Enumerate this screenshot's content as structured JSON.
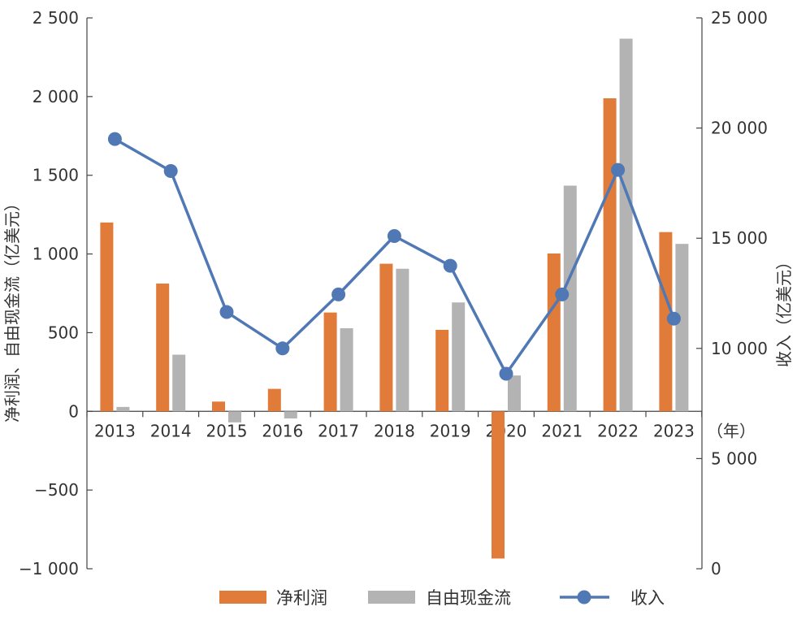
{
  "chart_data": {
    "type": "bar",
    "categories": [
      "2013",
      "2014",
      "2015",
      "2016",
      "2017",
      "2018",
      "2019",
      "2020",
      "2021",
      "2022",
      "2023"
    ],
    "x_unit": "（年）",
    "series": [
      {
        "name": "净利润",
        "kind": "bar",
        "axis": "left",
        "color": "#e07b39",
        "values": [
          1200,
          812,
          62,
          143,
          628,
          938,
          518,
          -935,
          1003,
          1989,
          1139
        ]
      },
      {
        "name": "自由现金流",
        "kind": "bar",
        "axis": "left",
        "color": "#b3b3b3",
        "values": [
          28,
          360,
          -70,
          -45,
          528,
          906,
          692,
          228,
          1434,
          2368,
          1064
        ]
      },
      {
        "name": "收入",
        "kind": "line",
        "axis": "right",
        "color": "#4f78b5",
        "values": [
          19500,
          18050,
          11650,
          10000,
          12450,
          15100,
          13750,
          8850,
          12450,
          18100,
          11350
        ]
      }
    ],
    "y_left": {
      "label": "净利润、自由现金流（亿美元）",
      "range": [
        -1000,
        2500
      ],
      "ticks": [
        -1000,
        -500,
        0,
        500,
        1000,
        1500,
        2000,
        2500
      ],
      "tick_labels": [
        "−1 000",
        "−500",
        "0",
        "500",
        "1 000",
        "1 500",
        "2 000",
        "2 500"
      ]
    },
    "y_right": {
      "label": "收入（亿美元）",
      "range": [
        0,
        25000
      ],
      "ticks": [
        0,
        5000,
        10000,
        15000,
        20000,
        25000
      ],
      "tick_labels": [
        "0",
        "5 000",
        "10 000",
        "15 000",
        "20 000",
        "25 000"
      ]
    },
    "grid": false,
    "legend_position": "bottom"
  }
}
